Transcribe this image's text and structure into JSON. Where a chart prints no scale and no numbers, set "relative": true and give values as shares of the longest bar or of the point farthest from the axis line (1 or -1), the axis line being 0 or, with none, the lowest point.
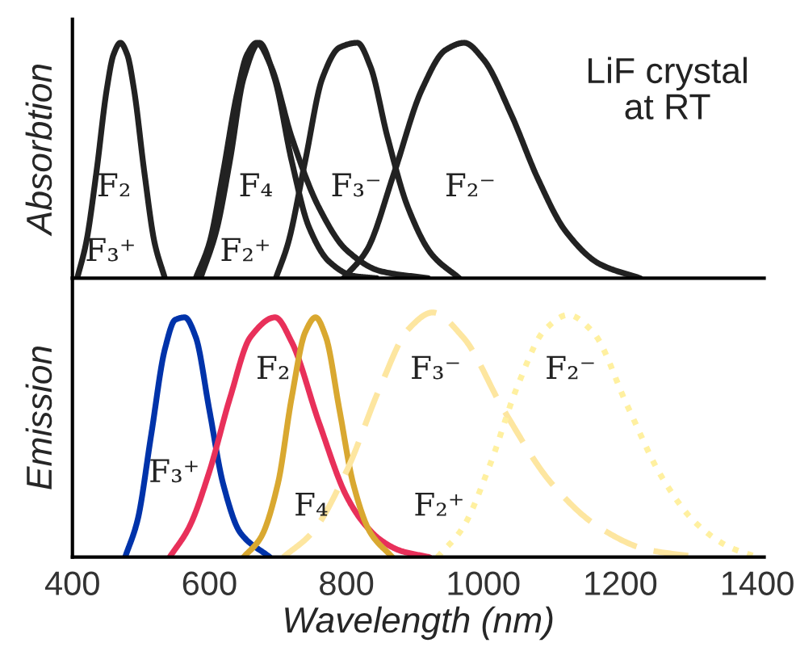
{
  "chart_data": [
    {
      "type": "line",
      "relative": true,
      "ylabel": "Absorbtion",
      "xlim": [
        400,
        1410
      ],
      "tick_labels": false,
      "grid": false,
      "legend": false,
      "series": [
        {
          "color": "#222222",
          "line_style": "solid",
          "x": [
            407,
            420,
            435,
            450,
            460,
            470,
            480,
            490,
            505,
            520,
            535
          ],
          "values": [
            0,
            0.15,
            0.45,
            0.8,
            0.95,
            1,
            0.95,
            0.8,
            0.45,
            0.15,
            0
          ]
        },
        {
          "color": "#222222",
          "line_style": "solid",
          "x": [
            580,
            600,
            620,
            640,
            655,
            669,
            690,
            720,
            760,
            800,
            850,
            919
          ],
          "values": [
            0,
            0.15,
            0.45,
            0.78,
            0.95,
            1,
            0.9,
            0.6,
            0.3,
            0.12,
            0.03,
            0
          ]
        },
        {
          "color": "#222222",
          "line_style": "solid",
          "x": [
            587,
            610,
            630,
            650,
            673,
            695,
            720,
            745,
            775,
            810,
            844
          ],
          "values": [
            0,
            0.2,
            0.5,
            0.85,
            1,
            0.85,
            0.5,
            0.22,
            0.07,
            0.01,
            0
          ]
        },
        {
          "color": "#222222",
          "line_style": "solid",
          "x": [
            697,
            715,
            740,
            765,
            790,
            816,
            835,
            860,
            890,
            925,
            965
          ],
          "values": [
            0,
            0.15,
            0.5,
            0.85,
            0.98,
            1,
            0.9,
            0.6,
            0.3,
            0.1,
            0
          ]
        },
        {
          "color": "#222222",
          "line_style": "solid",
          "x": [
            796,
            830,
            870,
            910,
            945,
            972,
            1000,
            1040,
            1080,
            1120,
            1170,
            1229
          ],
          "values": [
            0,
            0.12,
            0.45,
            0.8,
            0.97,
            1,
            0.93,
            0.7,
            0.42,
            0.2,
            0.06,
            0
          ]
        }
      ],
      "annotations": [
        "LiF crystal\nat RT",
        "F₂",
        "F₃⁺",
        "F₄",
        "F₂⁺",
        "F₃⁻",
        "F₂⁻"
      ]
    },
    {
      "type": "line",
      "relative": true,
      "ylabel": "Emission",
      "xlabel": "Wavelength (nm)",
      "xlim": [
        400,
        1410
      ],
      "xticks": [
        400,
        600,
        800,
        1000,
        1200,
        1400
      ],
      "tick_labels": "x",
      "grid": false,
      "legend": false,
      "series": [
        {
          "color": "#0033aa",
          "line_style": "solid",
          "x": [
            477,
            495,
            515,
            535,
            550,
            564,
            580,
            600,
            620,
            645,
            688
          ],
          "values": [
            0,
            0.15,
            0.5,
            0.85,
            0.97,
            0.98,
            0.9,
            0.6,
            0.3,
            0.1,
            0
          ]
        },
        {
          "color": "#e8305a",
          "line_style": "solid",
          "x": [
            542,
            570,
            600,
            630,
            660,
            696,
            720,
            760,
            800,
            825,
            850,
            880,
            921
          ],
          "values": [
            0,
            0.12,
            0.35,
            0.65,
            0.9,
            0.98,
            0.88,
            0.55,
            0.25,
            0.14,
            0.07,
            0.025,
            0
          ]
        },
        {
          "color": "#d9a830",
          "line_style": "solid",
          "x": [
            650,
            675,
            700,
            720,
            740,
            755,
            770,
            790,
            810,
            835,
            867
          ],
          "values": [
            0,
            0.08,
            0.3,
            0.65,
            0.92,
            0.98,
            0.9,
            0.6,
            0.3,
            0.1,
            0
          ]
        },
        {
          "color": "#fde6a0",
          "line_style": "dashed",
          "x": [
            708,
            750,
            800,
            850,
            890,
            926,
            970,
            1030,
            1100,
            1170,
            1240,
            1316
          ],
          "values": [
            0,
            0.1,
            0.35,
            0.7,
            0.93,
            1,
            0.9,
            0.6,
            0.3,
            0.12,
            0.03,
            0
          ]
        },
        {
          "color": "#fff0a0",
          "line_style": "dotted",
          "x": [
            933,
            970,
            1010,
            1050,
            1090,
            1124,
            1160,
            1210,
            1260,
            1310,
            1360,
            1400
          ],
          "values": [
            0,
            0.12,
            0.38,
            0.7,
            0.93,
            0.99,
            0.92,
            0.62,
            0.33,
            0.14,
            0.04,
            0
          ]
        }
      ],
      "annotations": [
        "F₂",
        "F₃⁻",
        "F₂⁻",
        "F₃⁺",
        "F₄",
        "F₂⁺"
      ]
    }
  ]
}
